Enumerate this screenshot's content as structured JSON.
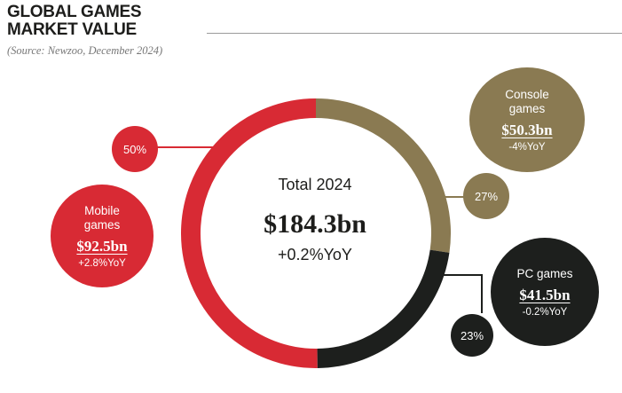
{
  "header": {
    "title_line1": "GLOBAL GAMES",
    "title_line2": "MARKET VALUE",
    "source": "(Source: Newzoo, December 2024)"
  },
  "center": {
    "label": "Total 2024",
    "value": "$184.3bn",
    "yoy": "+0.2%YoY"
  },
  "colors": {
    "mobile": "#d82a34",
    "console": "#8a7a52",
    "pc": "#1d1f1d",
    "background": "#ffffff"
  },
  "segments": {
    "mobile": {
      "name_line1": "Mobile",
      "name_line2": "games",
      "value": "$92.5bn",
      "yoy": "+2.8%YoY",
      "pct_label": "50%"
    },
    "console": {
      "name_line1": "Console",
      "name_line2": "games",
      "value": "$50.3bn",
      "yoy": "-4%YoY",
      "pct_label": "27%"
    },
    "pc": {
      "name_line1": "PC games",
      "value": "$41.5bn",
      "yoy": "-0.2%YoY",
      "pct_label": "23%"
    }
  },
  "chart_data": {
    "type": "pie",
    "title": "GLOBAL GAMES MARKET VALUE",
    "subtitle": "(Source: Newzoo, December 2024)",
    "total": 184.3,
    "unit": "$bn",
    "categories": [
      "Mobile games",
      "Console games",
      "PC games"
    ],
    "values": [
      92.5,
      50.3,
      41.5
    ],
    "percentages": [
      50,
      27,
      23
    ],
    "yoy_change_pct": [
      2.8,
      -4,
      -0.2
    ]
  }
}
